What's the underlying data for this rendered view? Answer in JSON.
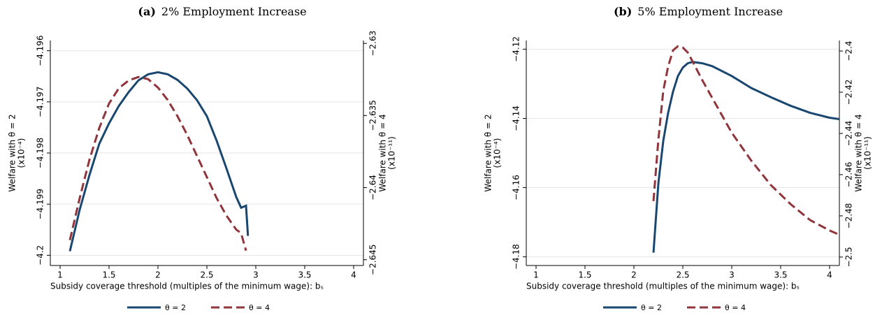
{
  "chart_data": [
    {
      "type": "line",
      "panel": "(a)",
      "title": "2% Employment Increase",
      "xlabel": "Subsidy coverage threshold (multiples of the minimum wage): bₛ",
      "ylabel": "Welfare with θ = 2",
      "yunit": "(x10⁻⁴)",
      "y2label": "Welfare with θ = 4",
      "y2unit": "(x10⁻¹¹)",
      "xlim": [
        0.9,
        4.1
      ],
      "xticks": [
        1,
        1.5,
        2,
        2.5,
        3,
        3.5,
        4
      ],
      "ylim": [
        -4.2002,
        -4.1958
      ],
      "yticks": [
        {
          "value": -4.2,
          "label": "−4.2"
        },
        {
          "value": -4.199,
          "label": "−4.199"
        },
        {
          "value": -4.198,
          "label": "−4.198"
        },
        {
          "value": -4.197,
          "label": "−4.197"
        },
        {
          "value": -4.196,
          "label": "−4.196"
        }
      ],
      "y2lim": [
        -2.6454,
        -2.6298
      ],
      "y2ticks": [
        {
          "value": -2.645,
          "label": "−2.645"
        },
        {
          "value": -2.64,
          "label": "−2.64"
        },
        {
          "value": -2.635,
          "label": "−2.635"
        },
        {
          "value": -2.63,
          "label": "−2.63"
        }
      ],
      "grid": true,
      "series": [
        {
          "name": "θ = 2",
          "color": "#1a476f",
          "dash": "none",
          "x": [
            1.1,
            1.2,
            1.3,
            1.4,
            1.5,
            1.6,
            1.7,
            1.8,
            1.9,
            2.0,
            2.1,
            2.2,
            2.3,
            2.4,
            2.5,
            2.6,
            2.7,
            2.8,
            2.85,
            2.9,
            2.92
          ],
          "values": [
            -4.19992,
            -4.19911,
            -4.19843,
            -4.19782,
            -4.19742,
            -4.19708,
            -4.19681,
            -4.19658,
            -4.19646,
            -4.19642,
            -4.19646,
            -4.19657,
            -4.19674,
            -4.19697,
            -4.19728,
            -4.19776,
            -4.1983,
            -4.19886,
            -4.19907,
            -4.19903,
            -4.19962
          ]
        },
        {
          "name": "θ = 4",
          "color": "#90353b",
          "dash": "12 6",
          "axis": "y2",
          "x": [
            1.1,
            1.2,
            1.3,
            1.4,
            1.5,
            1.6,
            1.7,
            1.8,
            1.9,
            2.0,
            2.1,
            2.2,
            2.3,
            2.4,
            2.5,
            2.6,
            2.7,
            2.8,
            2.85,
            2.9
          ],
          "values": [
            -2.64364,
            -2.64073,
            -2.63806,
            -2.63587,
            -2.63417,
            -2.63311,
            -2.63257,
            -2.63233,
            -2.63248,
            -2.63306,
            -2.63393,
            -2.63505,
            -2.63636,
            -2.63782,
            -2.63927,
            -2.64073,
            -2.64194,
            -2.64291,
            -2.64316,
            -2.64437
          ]
        }
      ]
    },
    {
      "type": "line",
      "panel": "(b)",
      "title": "5% Employment Increase",
      "xlabel": "Subsidy coverage threshold (multiples of the minimum wage): bₛ",
      "ylabel": "Welfare with θ = 2",
      "yunit": "(x10⁻⁴)",
      "y2label": "Welfare with θ = 4",
      "y2unit": "(x10⁻¹¹)",
      "xlim": [
        0.9,
        4.1
      ],
      "xticks": [
        1,
        1.5,
        2,
        2.5,
        3,
        3.5,
        4
      ],
      "ylim": [
        -4.1825,
        -4.1175
      ],
      "yticks": [
        {
          "value": -4.18,
          "label": "−4.18"
        },
        {
          "value": -4.16,
          "label": "−4.16"
        },
        {
          "value": -4.14,
          "label": "−4.14"
        },
        {
          "value": -4.12,
          "label": "−4.12"
        }
      ],
      "y2lim": [
        -2.5041,
        -2.3949
      ],
      "y2ticks": [
        {
          "value": -2.5,
          "label": "−2.5"
        },
        {
          "value": -2.48,
          "label": "−2.48"
        },
        {
          "value": -2.46,
          "label": "−2.46"
        },
        {
          "value": -2.44,
          "label": "−2.44"
        },
        {
          "value": -2.42,
          "label": "−2.42"
        },
        {
          "value": -2.4,
          "label": "−2.4"
        }
      ],
      "grid": true,
      "series": [
        {
          "name": "θ = 2",
          "color": "#1a476f",
          "dash": "none",
          "x": [
            2.2,
            2.25,
            2.3,
            2.35,
            2.4,
            2.45,
            2.5,
            2.55,
            2.6,
            2.7,
            2.8,
            3.0,
            3.2,
            3.4,
            3.6,
            3.8,
            4.0,
            4.1
          ],
          "values": [
            -4.17878,
            -4.15878,
            -4.14653,
            -4.13837,
            -4.13224,
            -4.12776,
            -4.12531,
            -4.12408,
            -4.12367,
            -4.12408,
            -4.1249,
            -4.12776,
            -4.13122,
            -4.13388,
            -4.13633,
            -4.13837,
            -4.1398,
            -4.1402
          ]
        },
        {
          "name": "θ = 4",
          "color": "#90353b",
          "dash": "12 6",
          "axis": "y2",
          "x": [
            2.2,
            2.25,
            2.3,
            2.35,
            2.4,
            2.45,
            2.5,
            2.55,
            2.6,
            2.7,
            2.8,
            3.0,
            3.2,
            3.4,
            3.6,
            3.8,
            4.0,
            4.1
          ],
          "values": [
            -2.47288,
            -2.44305,
            -2.41932,
            -2.40746,
            -2.39966,
            -2.39763,
            -2.39831,
            -2.40068,
            -2.40508,
            -2.41424,
            -2.42271,
            -2.43966,
            -2.45322,
            -2.46508,
            -2.47424,
            -2.48203,
            -2.48712,
            -2.48915
          ]
        }
      ]
    }
  ]
}
